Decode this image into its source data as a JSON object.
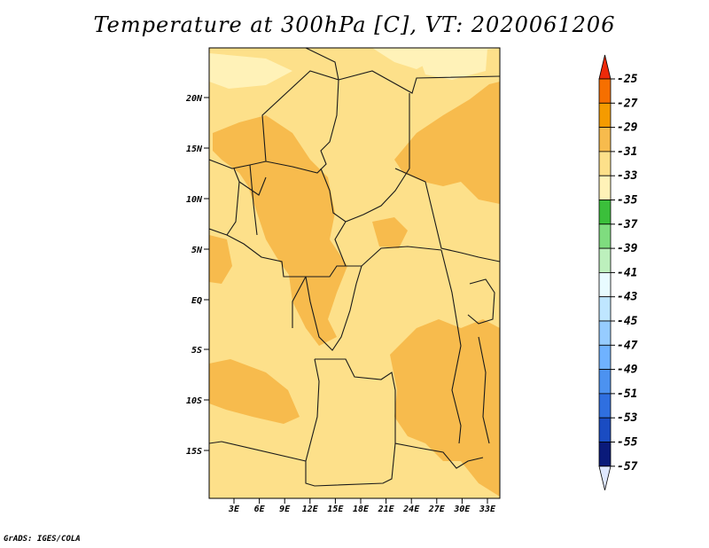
{
  "title": "Temperature at 300hPa [C], VT: 2020061206",
  "credit": "GrADS: IGES/COLA",
  "map": {
    "lat_labels": [
      "20N",
      "15N",
      "10N",
      "5N",
      "EQ",
      "5S",
      "10S",
      "15S"
    ],
    "lon_labels": [
      "3E",
      "6E",
      "9E",
      "12E",
      "15E",
      "18E",
      "21E",
      "24E",
      "27E",
      "30E",
      "33E"
    ],
    "colors": {
      "base": "#fde08a",
      "warm": "#f7bb4d",
      "cool": "#fff2b8",
      "border": "#1a1a1a"
    }
  },
  "colorbar": {
    "labels": [
      "-25",
      "-27",
      "-29",
      "-31",
      "-33",
      "-35",
      "-37",
      "-39",
      "-41",
      "-43",
      "-45",
      "-47",
      "-49",
      "-51",
      "-53",
      "-55",
      "-57"
    ],
    "colors": [
      "#ee4b0e",
      "#f66f00",
      "#f59b00",
      "#f7bb4d",
      "#fde08a",
      "#fff2b8",
      "#3bbf3b",
      "#7fdc7f",
      "#bdf0bd",
      "#e8fbff",
      "#bfe6ff",
      "#96ccff",
      "#6fb2ff",
      "#4c92f0",
      "#2f6fe0",
      "#1a4cc2",
      "#0a1a7a"
    ],
    "top_color": "#ee2a0a",
    "bottom_color": "#dfe8ff"
  }
}
